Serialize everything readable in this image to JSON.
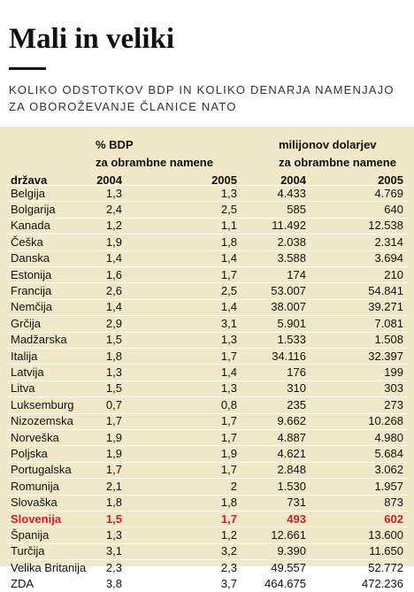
{
  "header": {
    "title": "Mali in veliki",
    "subtitle": [
      "KOLIKO ODSTOTKOV BDP IN KOLIKO DENARJA NAMENJAJO",
      "ZA OBOROŽEVANJE ČLANICE NATO"
    ]
  },
  "table": {
    "groups": [
      [
        "% BDP",
        "za obrambne namene"
      ],
      [
        "milijonov dolarjev",
        "za obrambne namene"
      ]
    ],
    "columns": [
      "država",
      "2004",
      "2005",
      "2004",
      "2005"
    ],
    "rows": [
      {
        "cells": [
          "Belgija",
          "1,3",
          "1,3",
          "4.433",
          "4.769"
        ]
      },
      {
        "cells": [
          "Bolgarija",
          "2,4",
          "2,5",
          "585",
          "640"
        ]
      },
      {
        "cells": [
          "Kanada",
          "1,2",
          "1,1",
          "11.492",
          "12.538"
        ]
      },
      {
        "cells": [
          "Češka",
          "1,9",
          "1,8",
          "2.038",
          "2.314"
        ]
      },
      {
        "cells": [
          "Danska",
          "1,4",
          "1,4",
          "3.588",
          "3.694"
        ]
      },
      {
        "cells": [
          "Estonija",
          "1,6",
          "1,7",
          "174",
          "210"
        ]
      },
      {
        "cells": [
          "Francija",
          "2,6",
          "2,5",
          "53.007",
          "54.841"
        ]
      },
      {
        "cells": [
          "Nemčija",
          "1,4",
          "1,4",
          "38.007",
          "39.271"
        ]
      },
      {
        "cells": [
          "Grčija",
          "2,9",
          "3,1",
          "5.901",
          "7.081"
        ]
      },
      {
        "cells": [
          "Madžarska",
          "1,5",
          "1,3",
          "1.533",
          "1.508"
        ]
      },
      {
        "cells": [
          "Italija",
          "1,8",
          "1,7",
          "34.116",
          "32.397"
        ]
      },
      {
        "cells": [
          "Latvija",
          "1,3",
          "1,4",
          "176",
          "199"
        ]
      },
      {
        "cells": [
          "Litva",
          "1,5",
          "1,3",
          "310",
          "303"
        ]
      },
      {
        "cells": [
          "Luksemburg",
          "0,7",
          "0,8",
          "235",
          "273"
        ]
      },
      {
        "cells": [
          "Nizozemska",
          "1,7",
          "1,7",
          "9.662",
          "10.268"
        ]
      },
      {
        "cells": [
          "Norveška",
          "1,9",
          "1,7",
          "4.887",
          "4.980"
        ]
      },
      {
        "cells": [
          "Poljska",
          "1,9",
          "1,9",
          "4.621",
          "5.684"
        ]
      },
      {
        "cells": [
          "Portugalska",
          "1,7",
          "1,7",
          "2.848",
          "3.062"
        ]
      },
      {
        "cells": [
          "Romunija",
          "2,1",
          "2",
          "1.530",
          "1.957"
        ]
      },
      {
        "cells": [
          "Slovaška",
          "1,8",
          "1,8",
          "731",
          "873"
        ]
      },
      {
        "cells": [
          "Slovenija",
          "1,5",
          "1,7",
          "493",
          "602"
        ],
        "highlight": true
      },
      {
        "cells": [
          "Španija",
          "1,3",
          "1,2",
          "12.661",
          "13.600"
        ]
      },
      {
        "cells": [
          "Turčija",
          "3,1",
          "3,2",
          "9.390",
          "11.650"
        ]
      },
      {
        "cells": [
          "Velika Britanija",
          "2,3",
          "2,3",
          "49.557",
          "52.772"
        ]
      },
      {
        "cells": [
          "ZDA",
          "3,8",
          "3,7",
          "464.675",
          "472.236"
        ]
      }
    ]
  }
}
